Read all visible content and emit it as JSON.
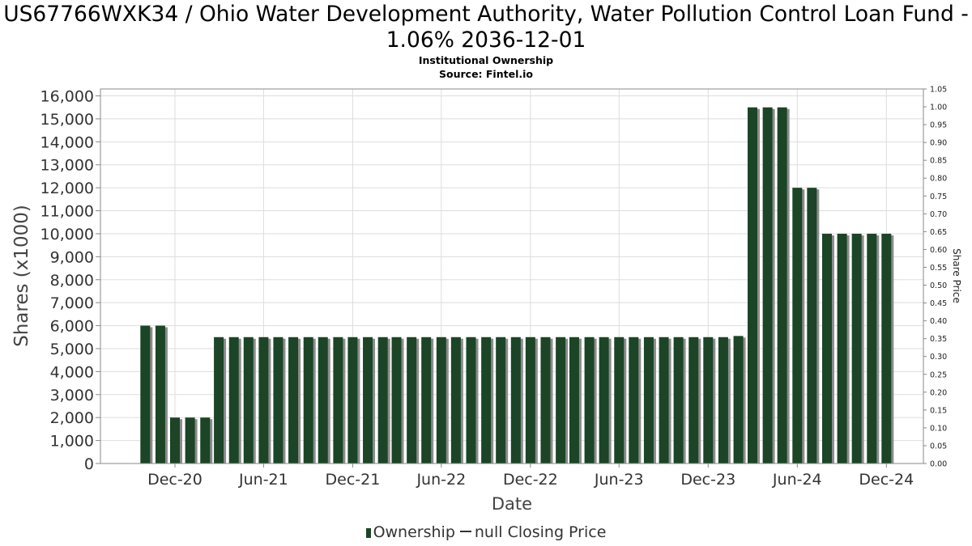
{
  "title": "US67766WXK34 / Ohio Water Development Authority, Water Pollution Control Loan Fund - 1.06% 2036-12-01",
  "subtitle": "Institutional Ownership",
  "source": "Source: Fintel.io",
  "legend": {
    "ownership": "Ownership",
    "price": "null Closing Price"
  },
  "colors": {
    "bar": "#1b4526",
    "bar_shadow": "#8c8c8c",
    "grid": "#dddddd",
    "axis": "#888888"
  },
  "chart_data": {
    "type": "bar",
    "xlabel": "Date",
    "ylabel": "Shares (x1000)",
    "y2label": "Share Price",
    "ylim": [
      0,
      16300
    ],
    "y2lim": [
      0,
      1.05
    ],
    "yticks": [
      "0",
      "1,000",
      "2,000",
      "3,000",
      "4,000",
      "5,000",
      "6,000",
      "7,000",
      "8,000",
      "9,000",
      "10,000",
      "11,000",
      "12,000",
      "13,000",
      "14,000",
      "15,000",
      "16,000"
    ],
    "y2ticks": [
      "0.00",
      "0.05",
      "0.10",
      "0.15",
      "0.20",
      "0.25",
      "0.30",
      "0.35",
      "0.40",
      "0.45",
      "0.50",
      "0.55",
      "0.60",
      "0.65",
      "0.70",
      "0.75",
      "0.80",
      "0.85",
      "0.90",
      "0.95",
      "1.00",
      "1.05"
    ],
    "xlim": [
      "2020-07-01",
      "2025-02-15"
    ],
    "xticks": [
      {
        "date": "2020-12-01",
        "label": "Dec-20"
      },
      {
        "date": "2021-06-01",
        "label": "Jun-21"
      },
      {
        "date": "2021-12-01",
        "label": "Dec-21"
      },
      {
        "date": "2022-06-01",
        "label": "Jun-22"
      },
      {
        "date": "2022-12-01",
        "label": "Dec-22"
      },
      {
        "date": "2023-06-01",
        "label": "Jun-23"
      },
      {
        "date": "2023-12-01",
        "label": "Dec-23"
      },
      {
        "date": "2024-06-01",
        "label": "Jun-24"
      },
      {
        "date": "2024-12-01",
        "label": "Dec-24"
      }
    ],
    "grid": true,
    "series": [
      {
        "name": "Ownership",
        "points": [
          {
            "date": "2020-10-01",
            "value": 6000
          },
          {
            "date": "2020-11-01",
            "value": 6000
          },
          {
            "date": "2020-12-01",
            "value": 2000
          },
          {
            "date": "2021-01-01",
            "value": 2000
          },
          {
            "date": "2021-02-01",
            "value": 2000
          },
          {
            "date": "2021-03-01",
            "value": 5500
          },
          {
            "date": "2021-04-01",
            "value": 5500
          },
          {
            "date": "2021-05-01",
            "value": 5500
          },
          {
            "date": "2021-06-01",
            "value": 5500
          },
          {
            "date": "2021-07-01",
            "value": 5500
          },
          {
            "date": "2021-08-01",
            "value": 5500
          },
          {
            "date": "2021-09-01",
            "value": 5500
          },
          {
            "date": "2021-10-01",
            "value": 5500
          },
          {
            "date": "2021-11-01",
            "value": 5500
          },
          {
            "date": "2021-12-01",
            "value": 5500
          },
          {
            "date": "2022-01-01",
            "value": 5500
          },
          {
            "date": "2022-02-01",
            "value": 5500
          },
          {
            "date": "2022-03-01",
            "value": 5500
          },
          {
            "date": "2022-04-01",
            "value": 5500
          },
          {
            "date": "2022-05-01",
            "value": 5500
          },
          {
            "date": "2022-06-01",
            "value": 5500
          },
          {
            "date": "2022-07-01",
            "value": 5500
          },
          {
            "date": "2022-08-01",
            "value": 5500
          },
          {
            "date": "2022-09-01",
            "value": 5500
          },
          {
            "date": "2022-10-01",
            "value": 5500
          },
          {
            "date": "2022-11-01",
            "value": 5500
          },
          {
            "date": "2022-12-01",
            "value": 5500
          },
          {
            "date": "2023-01-01",
            "value": 5500
          },
          {
            "date": "2023-02-01",
            "value": 5500
          },
          {
            "date": "2023-03-01",
            "value": 5500
          },
          {
            "date": "2023-04-01",
            "value": 5500
          },
          {
            "date": "2023-05-01",
            "value": 5500
          },
          {
            "date": "2023-06-01",
            "value": 5500
          },
          {
            "date": "2023-07-01",
            "value": 5500
          },
          {
            "date": "2023-08-01",
            "value": 5500
          },
          {
            "date": "2023-09-01",
            "value": 5500
          },
          {
            "date": "2023-10-01",
            "value": 5500
          },
          {
            "date": "2023-11-01",
            "value": 5500
          },
          {
            "date": "2023-12-01",
            "value": 5500
          },
          {
            "date": "2024-01-01",
            "value": 5500
          },
          {
            "date": "2024-02-01",
            "value": 5550
          },
          {
            "date": "2024-03-01",
            "value": 15500
          },
          {
            "date": "2024-04-01",
            "value": 15500
          },
          {
            "date": "2024-05-01",
            "value": 15500
          },
          {
            "date": "2024-06-01",
            "value": 12000
          },
          {
            "date": "2024-07-01",
            "value": 12000
          },
          {
            "date": "2024-08-01",
            "value": 10000
          },
          {
            "date": "2024-09-01",
            "value": 10000
          },
          {
            "date": "2024-10-01",
            "value": 10000
          },
          {
            "date": "2024-11-01",
            "value": 10000
          },
          {
            "date": "2024-12-01",
            "value": 10000
          }
        ]
      },
      {
        "name": "null Closing Price",
        "points": []
      }
    ]
  }
}
